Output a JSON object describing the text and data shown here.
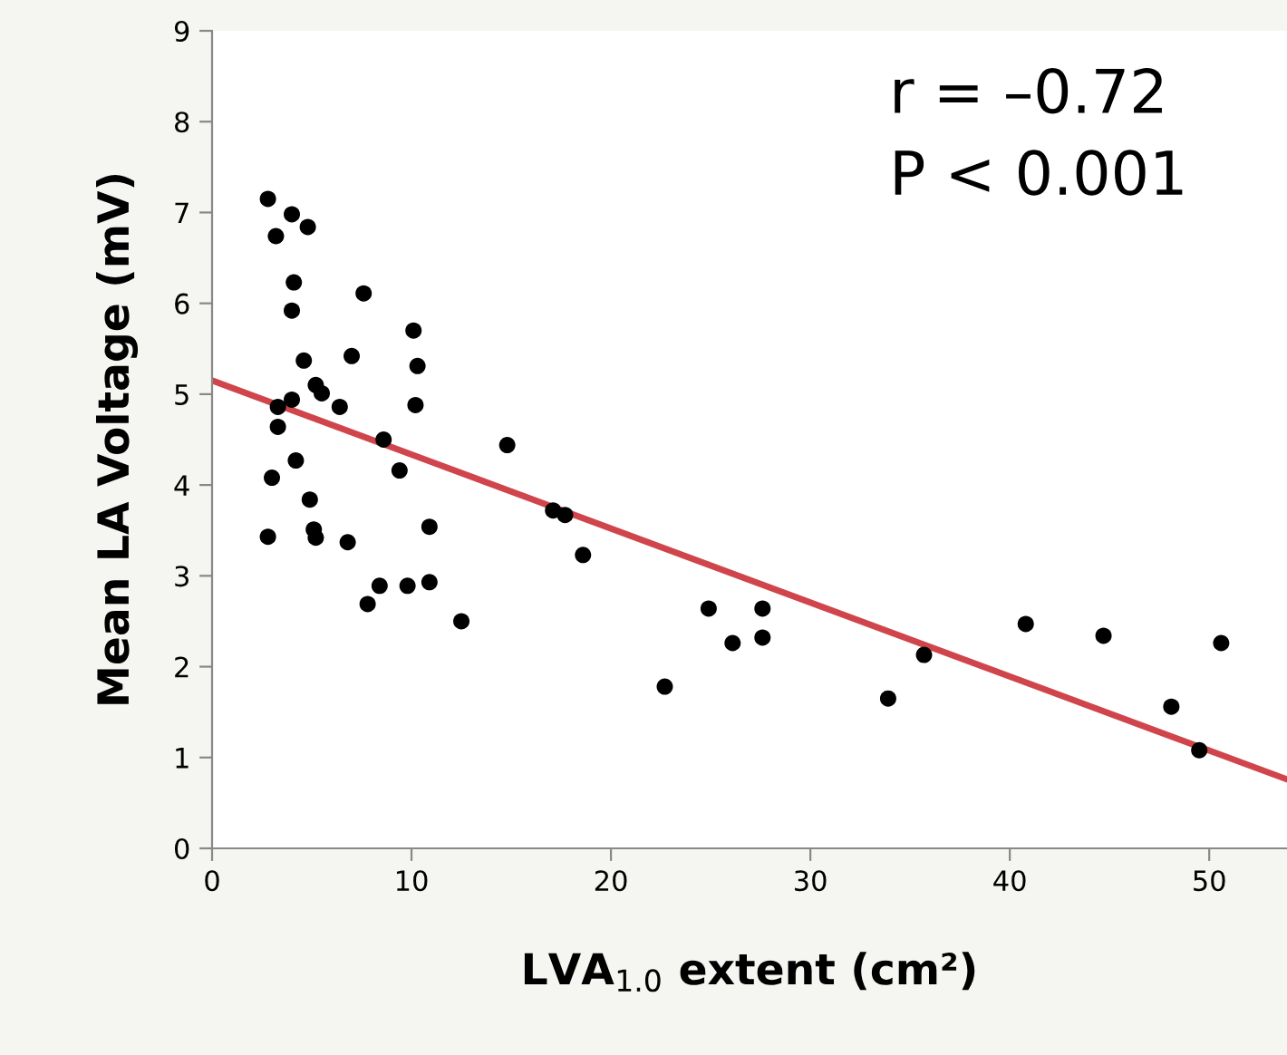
{
  "chart_data": {
    "type": "scatter",
    "xlabel": "LVA$_{1.0}$ extent (cm²)",
    "ylabel": "Mean LA Voltage (mV)",
    "annotations": [
      "r = –0.72",
      "P < 0.001"
    ],
    "xlim": [
      0,
      53.9
    ],
    "ylim": [
      0,
      9
    ],
    "xticks": [
      0,
      10,
      20,
      30,
      40,
      50
    ],
    "yticks": [
      0,
      1,
      2,
      3,
      4,
      5,
      6,
      7,
      8,
      9
    ],
    "grid": false,
    "legend": false,
    "series": [
      {
        "marker": "circle",
        "color": "#000000",
        "x": [
          2.8,
          4.0,
          3.2,
          4.8,
          4.1,
          4.0,
          7.6,
          10.1,
          4.6,
          7.0,
          10.3,
          5.2,
          5.5,
          4.0,
          3.3,
          6.4,
          10.2,
          3.3,
          8.6,
          14.8,
          4.2,
          3.0,
          9.4,
          4.9,
          10.9,
          2.8,
          5.1,
          5.2,
          6.8,
          8.4,
          9.8,
          10.9,
          7.8,
          12.5,
          17.1,
          17.7,
          18.6,
          22.7,
          24.9,
          26.1,
          27.6,
          27.6,
          33.9,
          35.7,
          40.8,
          44.7,
          48.1,
          49.5,
          50.6
        ],
        "values": [
          7.15,
          6.98,
          6.74,
          6.84,
          6.23,
          5.92,
          6.11,
          5.7,
          5.37,
          5.42,
          5.31,
          5.1,
          5.01,
          4.94,
          4.86,
          4.86,
          4.88,
          4.64,
          4.5,
          4.44,
          4.27,
          4.08,
          4.16,
          3.84,
          3.54,
          3.43,
          3.51,
          3.42,
          3.37,
          2.89,
          2.89,
          2.93,
          2.69,
          2.5,
          3.72,
          3.67,
          3.23,
          1.78,
          2.64,
          2.26,
          2.64,
          2.32,
          1.65,
          2.13,
          2.47,
          2.34,
          1.56,
          1.08,
          2.26
        ]
      },
      {
        "type": "line",
        "color": "#d0454c",
        "x": [
          0,
          53.9
        ],
        "values": [
          5.15,
          0.76
        ]
      }
    ]
  }
}
